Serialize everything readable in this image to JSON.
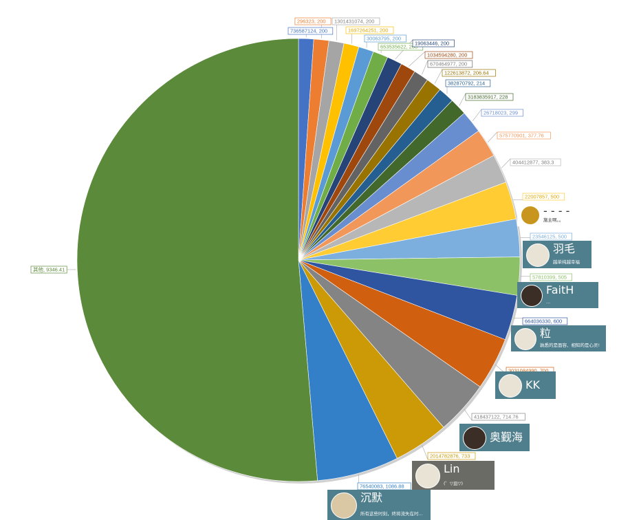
{
  "chart_data": {
    "type": "pie",
    "title": "",
    "start_angle_deg": 0,
    "direction": "clockwise",
    "slices": [
      {
        "label": "736587124, 200",
        "value": 200,
        "color": "#4472C4"
      },
      {
        "label": "296323, 200",
        "value": 200,
        "color": "#ED7D31"
      },
      {
        "label": "1301431074, 200",
        "value": 200,
        "color": "#A5A5A5"
      },
      {
        "label": "1697264251, 200",
        "value": 200,
        "color": "#FFC000"
      },
      {
        "label": "30063795, 200",
        "value": 200,
        "color": "#5B9BD5"
      },
      {
        "label": "653535622, 200",
        "value": 200,
        "color": "#70AD47"
      },
      {
        "label": "19063446, 200",
        "value": 200,
        "color": "#264478"
      },
      {
        "label": "1034594280, 200",
        "value": 200,
        "color": "#9E480E"
      },
      {
        "label": "670464977, 200",
        "value": 200,
        "color": "#636363"
      },
      {
        "label": "122613872, 206.64",
        "value": 206.64,
        "color": "#997300"
      },
      {
        "label": "382870792, 214",
        "value": 214,
        "color": "#255E91"
      },
      {
        "label": "3183835917, 228",
        "value": 228,
        "color": "#43682B"
      },
      {
        "label": "26718023, 299",
        "value": 299,
        "color": "#698ED0"
      },
      {
        "label": "575770901, 377.76",
        "value": 377.76,
        "color": "#F1975A"
      },
      {
        "label": "404412877, 383.3",
        "value": 383.3,
        "color": "#B7B7B7"
      },
      {
        "label": "22007857, 500",
        "value": 500,
        "color": "#FFCD33"
      },
      {
        "label": "23546125, 500",
        "value": 500,
        "color": "#7CAFDD"
      },
      {
        "label": "57810399, 505",
        "value": 505,
        "color": "#8CC168"
      },
      {
        "label": "664036330, 600",
        "value": 600,
        "color": "#2F55A0"
      },
      {
        "label": "3031084990, 700",
        "value": 700,
        "color": "#D06010"
      },
      {
        "label": "418437122, 714.76",
        "value": 714.76,
        "color": "#848484"
      },
      {
        "label": "2014782876, 733",
        "value": 733,
        "color": "#CC9A06"
      },
      {
        "label": "76540083, 1086.88",
        "value": 1086.88,
        "color": "#3480C8"
      },
      {
        "label": "其他, 9346.41",
        "value": 9346.41,
        "color": "#5B8A3A"
      }
    ]
  },
  "user_cards": [
    {
      "slice": 15,
      "name": "- - - -",
      "signature": "施主啊。。",
      "bg": "#ffffff",
      "text": "#333333",
      "avatar": "gift-box-avatar"
    },
    {
      "slice": 16,
      "name": "羽毛",
      "signature": "越单纯越幸福",
      "bg": "#4F7E8C",
      "text": "#ffffff",
      "avatar": "boy-photo-avatar"
    },
    {
      "slice": 17,
      "name": "FaitH",
      "signature": "...",
      "bg": "#4F7E8C",
      "text": "#ffffff",
      "avatar": "suited-man-avatar"
    },
    {
      "slice": 18,
      "name": "粒",
      "signature": "孰悉的是面容、相知的是心灵!",
      "bg": "#4F7E8C",
      "text": "#ffffff",
      "avatar": "graduate-cartoon-avatar"
    },
    {
      "slice": 19,
      "name": "KK",
      "signature": "",
      "bg": "#4F7E8C",
      "text": "#ffffff",
      "avatar": "anime-cat-avatar"
    },
    {
      "slice": 20,
      "name": "奥觐海",
      "signature": "",
      "bg": "#4F7E8C",
      "text": "#ffffff",
      "avatar": "portrait-avatar"
    },
    {
      "slice": 21,
      "name": "Lin",
      "signature": "(゜▽皿▽)",
      "bg": "#6B6B66",
      "text": "#ffffff",
      "avatar": "anime-girl-avatar"
    },
    {
      "slice": 22,
      "name": "沉默",
      "signature": "所有这些时刻，终将流失在时...",
      "bg": "#4F7E8C",
      "text": "#ffffff",
      "avatar": "penguin-avatar"
    }
  ]
}
